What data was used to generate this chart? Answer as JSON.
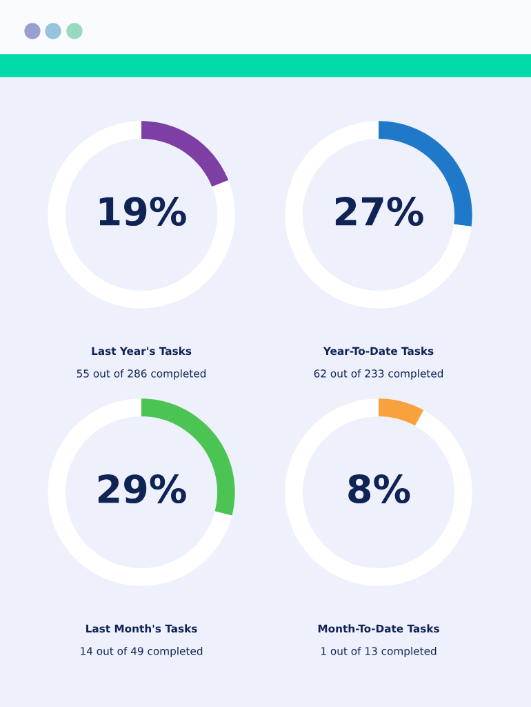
{
  "chart_data": [
    {
      "type": "donut",
      "title": "Last Year's Tasks",
      "subtitle": "55 out of 286 completed",
      "categories": [
        null,
        null
      ],
      "values": [
        19,
        81
      ],
      "colors": [
        "#7d3fa3",
        "#ffffff"
      ],
      "value_labels": [
        "19%",
        null
      ]
    },
    {
      "type": "donut",
      "title": "Year-To-Date Tasks",
      "subtitle": "62 out of 233 completed",
      "categories": [
        null,
        null
      ],
      "values": [
        27,
        73
      ],
      "colors": [
        "#1f78c8",
        "#ffffff"
      ],
      "value_labels": [
        "27%",
        null
      ]
    },
    {
      "type": "donut",
      "title": "Last Month's Tasks",
      "subtitle": "14 out of 49 completed",
      "categories": [
        null,
        null
      ],
      "values": [
        29,
        71
      ],
      "colors": [
        "#4cc453",
        "#ffffff"
      ],
      "value_labels": [
        "29%",
        null
      ]
    },
    {
      "type": "donut",
      "title": "Month-To-Date Tasks",
      "subtitle": "1 out of 13 completed",
      "categories": [
        null,
        null
      ],
      "values": [
        8,
        92
      ],
      "colors": [
        "#f7a23c",
        "#ffffff"
      ],
      "value_labels": [
        "8%",
        null
      ]
    }
  ]
}
